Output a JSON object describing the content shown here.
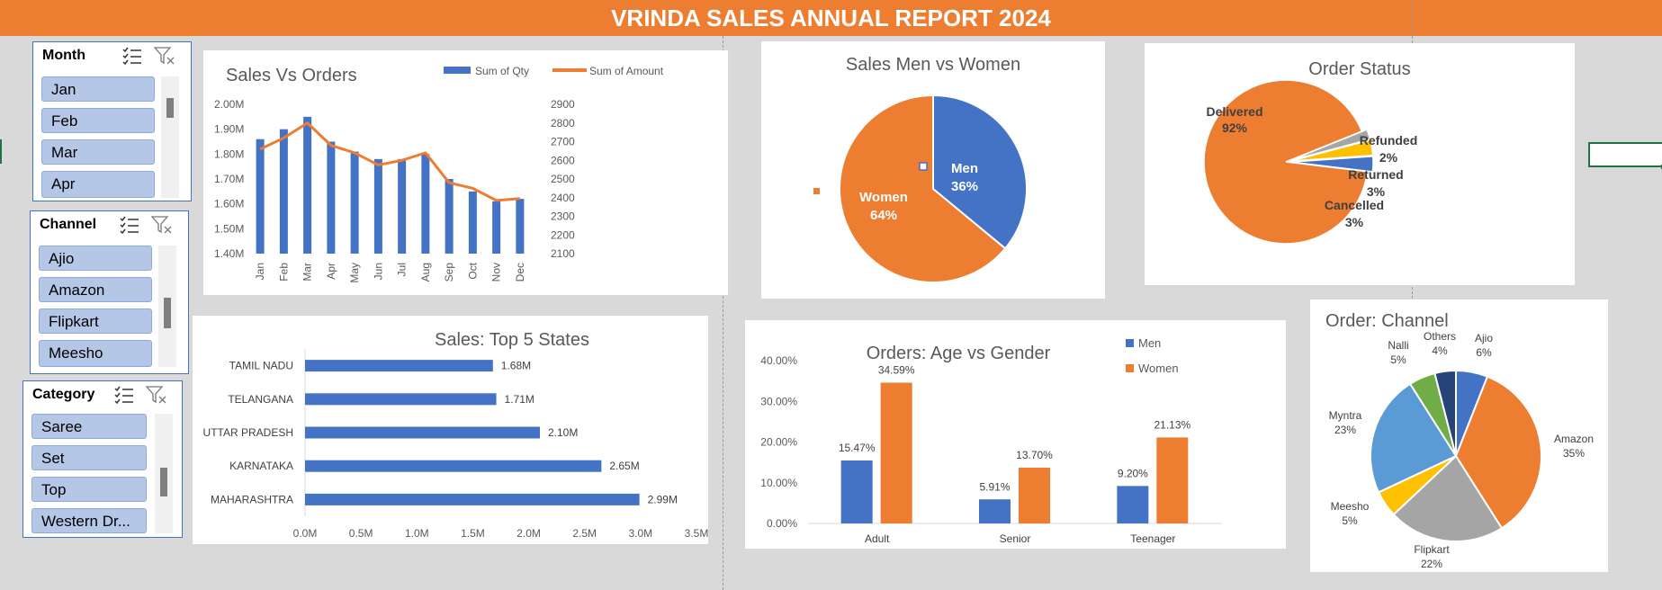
{
  "report_title": "VRINDA SALES ANNUAL REPORT 2024",
  "slicers": {
    "month": {
      "title": "Month",
      "items": [
        "Jan",
        "Feb",
        "Mar",
        "Apr"
      ]
    },
    "channel": {
      "title": "Channel",
      "items": [
        "Ajio",
        "Amazon",
        "Flipkart",
        "Meesho"
      ]
    },
    "category": {
      "title": "Category",
      "items": [
        "Saree",
        "Set",
        "Top",
        "Western Dr..."
      ]
    }
  },
  "colors": {
    "blue": "#4472c4",
    "orange": "#ed7d31",
    "gray": "#a5a5a5",
    "yellow": "#ffc000",
    "light_blue": "#5b9bd5",
    "green": "#70ad47",
    "navy": "#264478"
  },
  "chart_data": [
    {
      "id": "sales_vs_orders",
      "type": "bar",
      "title": "Sales Vs Orders",
      "categories": [
        "Jan",
        "Feb",
        "Mar",
        "Apr",
        "May",
        "Jun",
        "Jul",
        "Aug",
        "Sep",
        "Oct",
        "Nov",
        "Dec"
      ],
      "series": [
        {
          "name": "Sum of Qty",
          "type": "bar",
          "values": [
            1.86,
            1.9,
            1.95,
            1.85,
            1.81,
            1.78,
            1.78,
            1.8,
            1.7,
            1.65,
            1.61,
            1.62
          ]
        },
        {
          "name": "Sum of Amount",
          "type": "line",
          "axis": "secondary",
          "values": [
            2660,
            2720,
            2800,
            2680,
            2640,
            2575,
            2600,
            2640,
            2480,
            2450,
            2385,
            2395
          ]
        }
      ],
      "y_ticks": [
        "2.00M",
        "1.90M",
        "1.80M",
        "1.70M",
        "1.60M",
        "1.50M",
        "1.40M"
      ],
      "y2_ticks": [
        "2900",
        "2800",
        "2700",
        "2600",
        "2500",
        "2400",
        "2300",
        "2200",
        "2100"
      ],
      "ylim": [
        1.4,
        2.0
      ],
      "y2lim": [
        2100,
        2900
      ],
      "legend": "top-right"
    },
    {
      "id": "sales_men_vs_women",
      "type": "pie",
      "title": "Sales Men vs Women",
      "labels": [
        "Men",
        "Women"
      ],
      "values": [
        36,
        64
      ],
      "display": [
        "36%",
        "64%"
      ]
    },
    {
      "id": "order_status",
      "type": "pie",
      "title": "Order Status",
      "labels": [
        "Delivered",
        "Refunded",
        "Returned",
        "Cancelled"
      ],
      "values": [
        92,
        2,
        3,
        3
      ],
      "display": [
        "92%",
        "2%",
        "3%",
        "3%"
      ]
    },
    {
      "id": "top_5_states",
      "type": "bar",
      "orientation": "horizontal",
      "title": "Sales: Top 5 States",
      "categories": [
        "TAMIL NADU",
        "TELANGANA",
        "UTTAR PRADESH",
        "KARNATAKA",
        "MAHARASHTRA"
      ],
      "values": [
        1.68,
        1.71,
        2.1,
        2.65,
        2.99
      ],
      "labels": [
        "1.68M",
        "1.71M",
        "2.10M",
        "2.65M",
        "2.99M"
      ],
      "x_ticks": [
        "0.0M",
        "0.5M",
        "1.0M",
        "1.5M",
        "2.0M",
        "2.5M",
        "3.0M",
        "3.5M"
      ],
      "xlim": [
        0,
        3.5
      ]
    },
    {
      "id": "age_vs_gender",
      "type": "bar",
      "title": "Orders: Age vs Gender",
      "categories": [
        "Adult",
        "Senior",
        "Teenager"
      ],
      "series": [
        {
          "name": "Men",
          "values": [
            15.47,
            5.91,
            9.2
          ],
          "labels": [
            "15.47%",
            "5.91%",
            "9.20%"
          ]
        },
        {
          "name": "Women",
          "values": [
            34.59,
            13.7,
            21.13
          ],
          "labels": [
            "34.59%",
            "13.70%",
            "21.13%"
          ]
        }
      ],
      "y_ticks": [
        "40.00%",
        "30.00%",
        "20.00%",
        "10.00%",
        "0.00%"
      ],
      "ylim": [
        0,
        40
      ],
      "legend": "top-right"
    },
    {
      "id": "order_channel",
      "type": "pie",
      "title": "Order: Channel",
      "labels": [
        "Ajio",
        "Amazon",
        "Flipkart",
        "Meesho",
        "Myntra",
        "Nalli",
        "Others"
      ],
      "values": [
        6,
        35,
        22,
        5,
        23,
        5,
        4
      ],
      "display": [
        "6%",
        "35%",
        "22%",
        "5%",
        "23%",
        "5%",
        "4%"
      ]
    }
  ]
}
